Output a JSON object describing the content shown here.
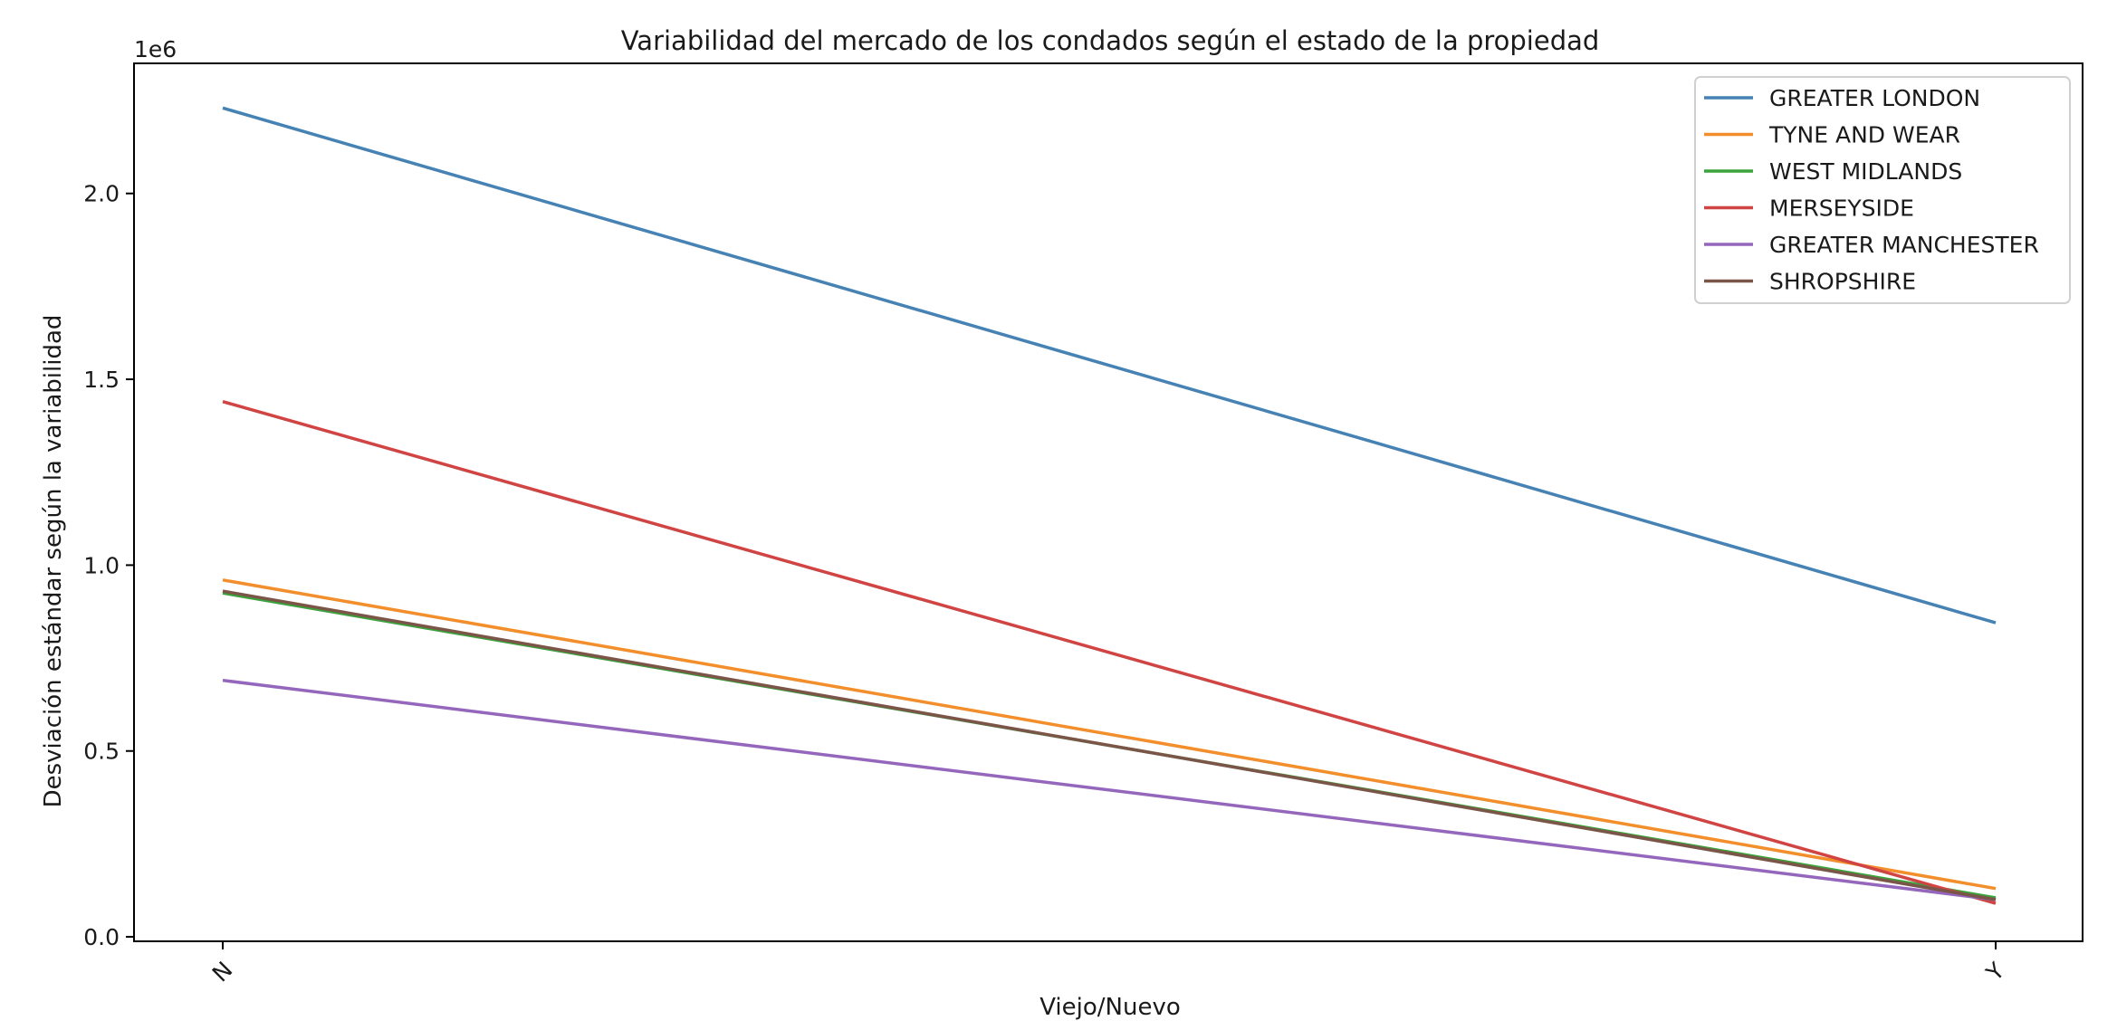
{
  "chart_data": {
    "type": "line",
    "title": "Variabilidad del mercado de los condados según el estado de la propiedad",
    "xlabel": "Viejo/Nuevo",
    "ylabel": "Desviación estándar según la variabilidad",
    "y_offset_label": "1e6",
    "categories": [
      "N",
      "Y"
    ],
    "ylim": [
      0,
      2.35
    ],
    "y_ticks": [
      0.0,
      0.5,
      1.0,
      1.5,
      2.0
    ],
    "y_tick_labels": [
      "0.0",
      "0.5",
      "1.0",
      "1.5",
      "2.0"
    ],
    "y_unit_multiplier": 1000000,
    "grid": false,
    "legend_position": "top-right",
    "series": [
      {
        "name": "GREATER LONDON",
        "values": [
          2.23,
          0.845
        ],
        "color": "#4682b4"
      },
      {
        "name": "TYNE AND WEAR",
        "values": [
          0.96,
          0.13
        ],
        "color": "#f28e2b"
      },
      {
        "name": "WEST MIDLANDS",
        "values": [
          0.925,
          0.105
        ],
        "color": "#3ca33c"
      },
      {
        "name": "MERSEYSIDE",
        "values": [
          1.44,
          0.09
        ],
        "color": "#d04444"
      },
      {
        "name": "GREATER MANCHESTER",
        "values": [
          0.69,
          0.1
        ],
        "color": "#9467bd"
      },
      {
        "name": "SHROPSHIRE",
        "values": [
          0.93,
          0.1
        ],
        "color": "#7a5548"
      }
    ]
  }
}
